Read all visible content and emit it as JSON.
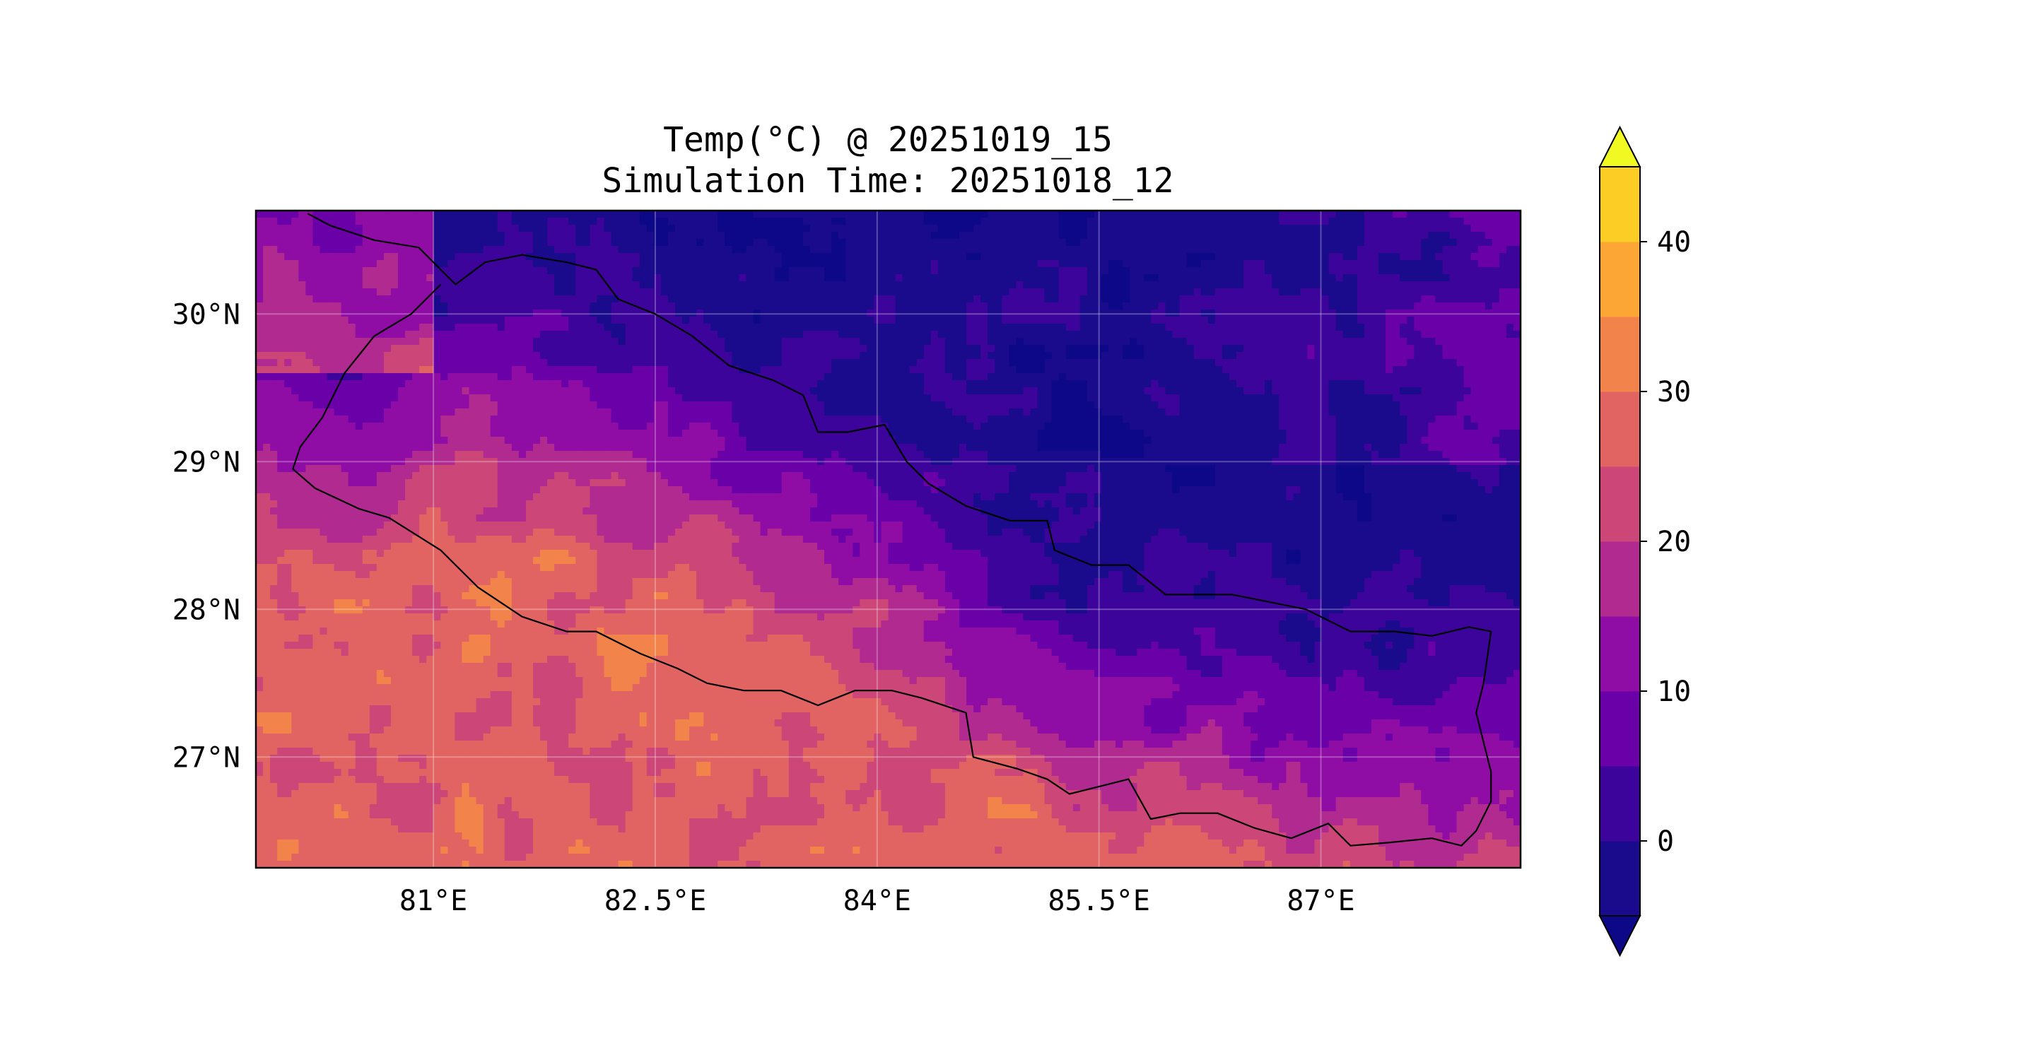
{
  "figure": {
    "title_line1": "Temp(°C) @ 20251019_15",
    "title_line2": "Simulation Time: 20251018_12"
  },
  "map": {
    "variable": "Temperature",
    "units": "°C",
    "extent": {
      "lon_min": 79.8,
      "lon_max": 88.35,
      "lat_min": 26.25,
      "lat_max": 30.7
    },
    "gridlines": true,
    "x_ticks": [
      {
        "value": 81.0,
        "label": "81°E"
      },
      {
        "value": 82.5,
        "label": "82.5°E"
      },
      {
        "value": 84.0,
        "label": "84°E"
      },
      {
        "value": 85.5,
        "label": "85.5°E"
      },
      {
        "value": 87.0,
        "label": "87°E"
      }
    ],
    "y_ticks": [
      {
        "value": 30,
        "label": "30°N"
      },
      {
        "value": 29,
        "label": "29°N"
      },
      {
        "value": 28,
        "label": "28°N"
      },
      {
        "value": 27,
        "label": "27°N"
      }
    ],
    "field_description": "warm plains in south (25-35), cold high mountains in north (below 0)",
    "border": [
      [
        80.15,
        30.68
      ],
      [
        80.3,
        30.6
      ],
      [
        80.6,
        30.5
      ],
      [
        80.9,
        30.45
      ],
      [
        81.05,
        30.3
      ],
      [
        81.15,
        30.2
      ],
      [
        81.35,
        30.35
      ],
      [
        81.6,
        30.4
      ],
      [
        81.9,
        30.35
      ],
      [
        82.1,
        30.3
      ],
      [
        82.25,
        30.1
      ],
      [
        82.5,
        30.0
      ],
      [
        82.75,
        29.85
      ],
      [
        83.0,
        29.65
      ],
      [
        83.3,
        29.55
      ],
      [
        83.5,
        29.45
      ],
      [
        83.6,
        29.2
      ],
      [
        83.8,
        29.2
      ],
      [
        84.05,
        29.25
      ],
      [
        84.2,
        29.0
      ],
      [
        84.35,
        28.85
      ],
      [
        84.6,
        28.7
      ],
      [
        84.9,
        28.6
      ],
      [
        85.15,
        28.6
      ],
      [
        85.2,
        28.4
      ],
      [
        85.45,
        28.3
      ],
      [
        85.7,
        28.3
      ],
      [
        85.95,
        28.1
      ],
      [
        86.2,
        28.1
      ],
      [
        86.4,
        28.1
      ],
      [
        86.65,
        28.05
      ],
      [
        86.9,
        28.0
      ],
      [
        87.2,
        27.85
      ],
      [
        87.5,
        27.85
      ],
      [
        87.75,
        27.82
      ],
      [
        88.0,
        27.88
      ],
      [
        88.15,
        27.85
      ],
      [
        88.1,
        27.5
      ],
      [
        88.05,
        27.3
      ],
      [
        88.1,
        27.1
      ],
      [
        88.15,
        26.9
      ],
      [
        88.15,
        26.7
      ],
      [
        88.05,
        26.5
      ],
      [
        87.95,
        26.4
      ],
      [
        87.75,
        26.45
      ],
      [
        87.45,
        26.42
      ],
      [
        87.2,
        26.4
      ],
      [
        87.05,
        26.55
      ],
      [
        86.8,
        26.45
      ],
      [
        86.55,
        26.52
      ],
      [
        86.3,
        26.62
      ],
      [
        86.05,
        26.62
      ],
      [
        85.85,
        26.58
      ],
      [
        85.7,
        26.85
      ],
      [
        85.5,
        26.8
      ],
      [
        85.3,
        26.75
      ],
      [
        85.15,
        26.85
      ],
      [
        84.95,
        26.92
      ],
      [
        84.65,
        27.0
      ],
      [
        84.6,
        27.3
      ],
      [
        84.3,
        27.4
      ],
      [
        84.1,
        27.45
      ],
      [
        83.85,
        27.45
      ],
      [
        83.6,
        27.35
      ],
      [
        83.35,
        27.45
      ],
      [
        83.1,
        27.45
      ],
      [
        82.85,
        27.5
      ],
      [
        82.65,
        27.6
      ],
      [
        82.4,
        27.7
      ],
      [
        82.1,
        27.85
      ],
      [
        81.9,
        27.85
      ],
      [
        81.6,
        27.95
      ],
      [
        81.3,
        28.15
      ],
      [
        81.05,
        28.4
      ],
      [
        80.7,
        28.62
      ],
      [
        80.5,
        28.68
      ],
      [
        80.2,
        28.82
      ],
      [
        80.05,
        28.95
      ],
      [
        80.1,
        29.1
      ],
      [
        80.25,
        29.3
      ],
      [
        80.4,
        29.6
      ],
      [
        80.6,
        29.85
      ],
      [
        80.85,
        30.0
      ],
      [
        81.05,
        30.2
      ]
    ]
  },
  "colorbar": {
    "levels": [
      -5,
      0,
      5,
      10,
      15,
      20,
      25,
      30,
      35,
      40,
      45
    ],
    "colors": [
      "#1a0a8c",
      "#3c049b",
      "#6a00a8",
      "#8f0da4",
      "#b12a90",
      "#cc4778",
      "#e16462",
      "#f2844b",
      "#fca636",
      "#fcce25",
      "#f0f921"
    ],
    "under_color": "#0d0887",
    "over_color": "#f0f921",
    "extend": "both",
    "ticks": [
      {
        "value": 0,
        "label": "0"
      },
      {
        "value": 10,
        "label": "10"
      },
      {
        "value": 20,
        "label": "20"
      },
      {
        "value": 30,
        "label": "30"
      },
      {
        "value": 40,
        "label": "40"
      }
    ]
  }
}
